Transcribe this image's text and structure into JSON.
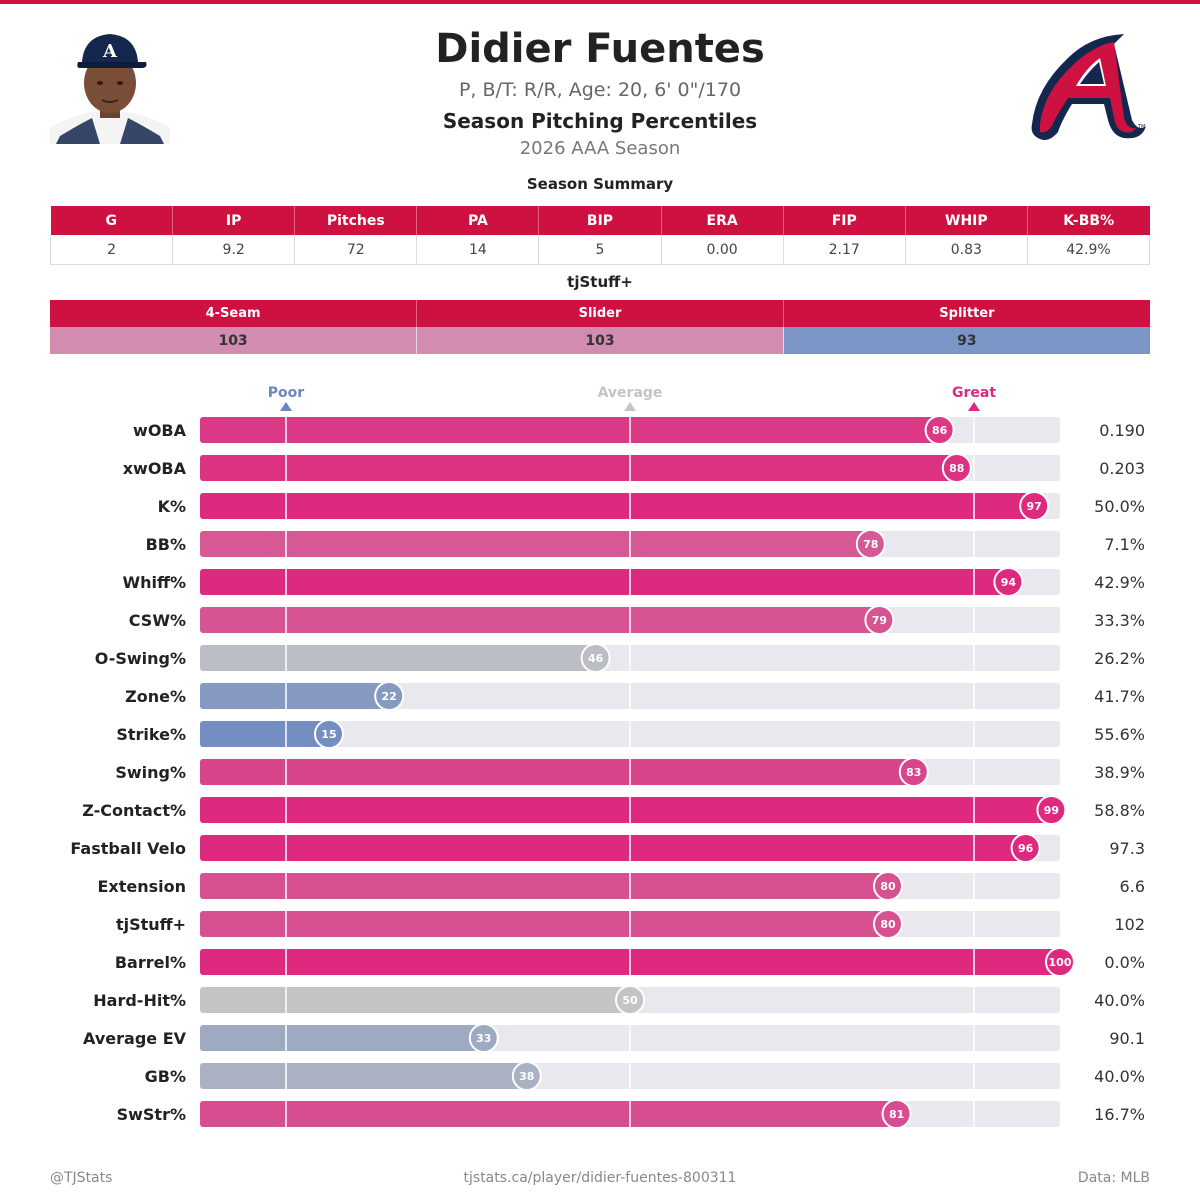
{
  "player": {
    "name": "Didier Fuentes",
    "bio": "P, B/T: R/R, Age: 20, 6' 0\"/170",
    "subtitle": "Season Pitching Percentiles",
    "season": "2026 AAA Season"
  },
  "summary": {
    "title": "Season Summary",
    "headers": [
      "G",
      "IP",
      "Pitches",
      "PA",
      "BIP",
      "ERA",
      "FIP",
      "WHIP",
      "K-BB%"
    ],
    "values": [
      "2",
      "9.2",
      "72",
      "14",
      "5",
      "0.00",
      "2.17",
      "0.83",
      "42.9%"
    ]
  },
  "tjstuff": {
    "title": "tjStuff+",
    "pitches": [
      {
        "name": "4-Seam",
        "value": "103",
        "color": "#d18caf"
      },
      {
        "name": "Slider",
        "value": "103",
        "color": "#d18caf"
      },
      {
        "name": "Splitter",
        "value": "93",
        "color": "#7b95c6"
      }
    ]
  },
  "legend": {
    "poor": "Poor",
    "average": "Average",
    "great": "Great",
    "poor_color": "#6a86c0",
    "average_color": "#c4c4c4",
    "great_color": "#dd2a7f"
  },
  "chart_data": {
    "type": "bar",
    "orientation": "horizontal",
    "xlim": [
      0,
      100
    ],
    "reference_lines": [
      10,
      50,
      90
    ],
    "categories": [
      "wOBA",
      "xwOBA",
      "K%",
      "BB%",
      "Whiff%",
      "CSW%",
      "O-Swing%",
      "Zone%",
      "Strike%",
      "Swing%",
      "Z-Contact%",
      "Fastball Velo",
      "Extension",
      "tjStuff+",
      "Barrel%",
      "Hard-Hit%",
      "Average EV",
      "GB%",
      "SwStr%"
    ],
    "values": [
      86,
      88,
      97,
      78,
      94,
      79,
      46,
      22,
      15,
      83,
      99,
      96,
      80,
      80,
      100,
      50,
      33,
      38,
      81
    ],
    "stat_values": [
      "0.190",
      "0.203",
      "50.0%",
      "7.1%",
      "42.9%",
      "33.3%",
      "26.2%",
      "41.7%",
      "55.6%",
      "38.9%",
      "58.8%",
      "97.3",
      "6.6",
      "102",
      "0.0%",
      "40.0%",
      "90.1",
      "40.0%",
      "16.7%"
    ]
  },
  "footer": {
    "left": "@TJStats",
    "center": "tjstats.ca/player/didier-fuentes-800311",
    "right": "Data: MLB"
  },
  "colors": {
    "brand_red": "#ce1141",
    "navy": "#13274f",
    "track": "#e8e8ee"
  },
  "images": {
    "headshot": "player-headshot-photo",
    "logo": "braves-a-logo"
  }
}
